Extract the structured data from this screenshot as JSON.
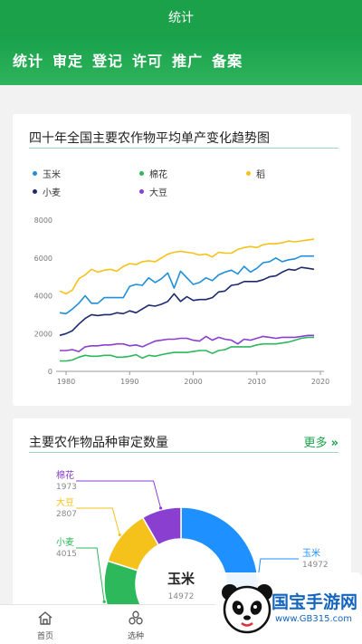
{
  "header": {
    "title": "统计"
  },
  "nav": {
    "items": [
      "统计",
      "审定",
      "登记",
      "许可",
      "推广",
      "备案"
    ]
  },
  "trend_card": {
    "title": "四十年全国主要农作物平均单产变化趋势图"
  },
  "chart_data": {
    "type": "line",
    "title": "四十年全国主要农作物平均单产变化趋势图",
    "xlabel": "",
    "ylabel": "",
    "xlim": [
      1979,
      2020
    ],
    "ylim": [
      0,
      8000
    ],
    "x_ticks": [
      1980,
      1990,
      2000,
      2010,
      2020
    ],
    "y_ticks": [
      0,
      2000,
      4000,
      6000,
      8000
    ],
    "legend_position": "top",
    "grid": false,
    "x": [
      1979,
      1980,
      1981,
      1982,
      1983,
      1984,
      1985,
      1986,
      1987,
      1988,
      1989,
      1990,
      1991,
      1992,
      1993,
      1994,
      1995,
      1996,
      1997,
      1998,
      1999,
      2000,
      2001,
      2002,
      2003,
      2004,
      2005,
      2006,
      2007,
      2008,
      2009,
      2010,
      2011,
      2012,
      2013,
      2014,
      2015,
      2016,
      2017,
      2018,
      2019
    ],
    "series": [
      {
        "name": "玉米",
        "color": "#1f8fd8",
        "values": [
          3100,
          3050,
          3300,
          3600,
          4000,
          3600,
          3600,
          3900,
          3900,
          3900,
          3900,
          4500,
          4600,
          4550,
          4950,
          4700,
          4900,
          5200,
          4400,
          5300,
          4950,
          4600,
          4700,
          4950,
          4800,
          5100,
          5250,
          5350,
          5150,
          5550,
          5250,
          5450,
          5750,
          5800,
          6000,
          5800,
          5900,
          5950,
          6100,
          6100,
          6100
        ]
      },
      {
        "name": "棉花",
        "color": "#2db85c",
        "values": [
          550,
          550,
          600,
          750,
          850,
          800,
          800,
          850,
          850,
          750,
          750,
          800,
          880,
          700,
          850,
          800,
          880,
          950,
          1000,
          1000,
          1000,
          1050,
          1100,
          1100,
          950,
          1100,
          1150,
          1300,
          1300,
          1300,
          1300,
          1400,
          1450,
          1450,
          1450,
          1500,
          1550,
          1650,
          1750,
          1800,
          1800
        ]
      },
      {
        "name": "稻",
        "color": "#f5c21b",
        "values": [
          4250,
          4100,
          4300,
          4900,
          5100,
          5400,
          5250,
          5350,
          5400,
          5300,
          5550,
          5700,
          5650,
          5800,
          5850,
          5800,
          6000,
          6200,
          6300,
          6350,
          6300,
          6250,
          6150,
          6200,
          6050,
          6300,
          6250,
          6250,
          6450,
          6550,
          6600,
          6550,
          6700,
          6750,
          6750,
          6800,
          6900,
          6850,
          6900,
          6950,
          7000
        ]
      },
      {
        "name": "小麦",
        "color": "#1d2a6e",
        "values": [
          1900,
          2000,
          2150,
          2500,
          2800,
          3000,
          2950,
          3000,
          3000,
          3100,
          3050,
          3200,
          3100,
          3300,
          3500,
          3450,
          3550,
          3700,
          4100,
          3700,
          3950,
          3750,
          3800,
          3800,
          3900,
          4200,
          4250,
          4550,
          4600,
          4750,
          4750,
          4750,
          4850,
          5000,
          5050,
          5250,
          5400,
          5350,
          5500,
          5450,
          5400
        ]
      },
      {
        "name": "大豆",
        "color": "#8a3fd1",
        "values": [
          1100,
          1100,
          1150,
          1050,
          1300,
          1350,
          1350,
          1400,
          1400,
          1450,
          1450,
          1350,
          1400,
          1300,
          1450,
          1600,
          1650,
          1700,
          1700,
          1750,
          1750,
          1650,
          1600,
          1850,
          1650,
          1800,
          1700,
          1650,
          1450,
          1700,
          1650,
          1750,
          1850,
          1800,
          1750,
          1800,
          1800,
          1800,
          1850,
          1900,
          1900
        ]
      }
    ]
  },
  "approval_card": {
    "title": "主要农作物品种审定数量",
    "more_label": "更多",
    "center_label": "玉米",
    "center_value": "14972",
    "labels": [
      {
        "name": "棉花",
        "value": "1973",
        "color": "#8a3fd1"
      },
      {
        "name": "大豆",
        "value": "2807",
        "color": "#f5c21b"
      },
      {
        "name": "小麦",
        "value": "4015",
        "color": "#2db85c"
      },
      {
        "name": "玉米",
        "value": "14972",
        "color": "#1e90ff"
      }
    ]
  },
  "tabbar": {
    "items": [
      {
        "label": "首页"
      },
      {
        "label": "选种"
      }
    ]
  },
  "watermark": {
    "brand": "国宝手游网",
    "url": "www.GB315.com"
  }
}
